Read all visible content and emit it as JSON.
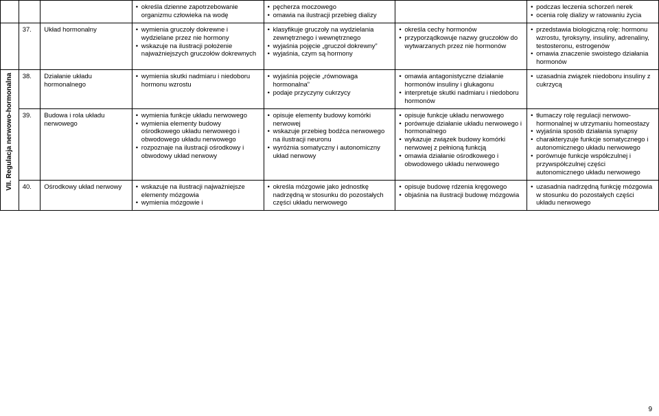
{
  "sideLabel": "VII. Regulacja nerwowo-hormonalna",
  "pageNumber": "9",
  "rows": [
    {
      "num": "",
      "topic": "",
      "c1": [
        "określa dzienne zapotrzebowanie organizmu człowieka na wodę"
      ],
      "c2": [
        "pęcherza moczowego",
        "omawia na ilustracji przebieg dializy"
      ],
      "c3": [],
      "c4": [
        "podczas leczenia schorzeń nerek",
        "ocenia rolę dializy w ratowaniu życia"
      ]
    },
    {
      "num": "37.",
      "topic": "Układ hormonalny",
      "c1": [
        "wymienia gruczoły dokrewne i wydzielane przez nie hormony",
        "wskazuje na ilustracji położenie najważniejszych gruczołów dokrewnych"
      ],
      "c2": [
        "klasyfikuje gruczoły na wydzielania zewnętrznego i wewnętrznego",
        "wyjaśnia pojęcie „gruczoł dokrewny”",
        "wyjaśnia, czym są hormony"
      ],
      "c3": [
        "określa cechy hormonów",
        "przyporządkowuje nazwy gruczołów do wytwarzanych przez nie hormonów"
      ],
      "c4": [
        "przedstawia biologiczną rolę: hormonu wzrostu, tyroksyny, insuliny, adrenaliny, testosteronu, estrogenów",
        "omawia znaczenie swoistego działania hormonów"
      ]
    },
    {
      "num": "38.",
      "topic": "Działanie układu hormonalnego",
      "c1": [
        "wymienia skutki nadmiaru i niedoboru hormonu wzrostu"
      ],
      "c2": [
        "wyjaśnia pojęcie „równowaga hormonalna”",
        "podaje przyczyny cukrzycy"
      ],
      "c3": [
        "omawia antagonistyczne działanie hormonów insuliny i glukagonu",
        "interpretuje skutki nadmiaru i niedoboru hormonów"
      ],
      "c4": [
        "uzasadnia związek niedoboru insuliny z cukrzycą"
      ]
    },
    {
      "num": "39.",
      "topic": "Budowa i rola układu nerwowego",
      "c1": [
        "wymienia funkcje układu nerwowego",
        "wymienia elementy budowy ośrodkowego układu nerwowego i obwodowego układu nerwowego",
        "rozpoznaje na ilustracji ośrodkowy i obwodowy układ nerwowy"
      ],
      "c2": [
        "opisuje elementy budowy komórki nerwowej",
        "wskazuje przebieg bodźca nerwowego na ilustracji neuronu",
        "wyróżnia somatyczny i autonomiczny układ nerwowy"
      ],
      "c3": [
        "opisuje funkcje układu nerwowego",
        "porównuje działanie układu nerwowego i hormonalnego",
        "wykazuje związek budowy komórki nerwowej z pełnioną funkcją",
        "omawia działanie ośrodkowego i obwodowego układu nerwowego"
      ],
      "c4": [
        "tłumaczy rolę regulacji nerwowo-hormonalnej w utrzymaniu homeostazy",
        "wyjaśnia sposób działania synapsy",
        "charakteryzuje funkcje somatycznego i autonomicznego układu nerwowego",
        "porównuje funkcje współczulnej i przywspółczulnej części autonomicznego układu nerwowego"
      ]
    },
    {
      "num": "40.",
      "topic": "Ośrodkowy układ nerwowy",
      "c1": [
        "wskazuje na ilustracji najważniejsze elementy mózgowia",
        "wymienia mózgowie i"
      ],
      "c2": [
        "określa mózgowie jako jednostkę nadrzędną w stosunku do pozostałych części układu nerwowego"
      ],
      "c3": [
        "opisuje budowę rdzenia kręgowego",
        "objaśnia na ilustracji budowę mózgowia"
      ],
      "c4": [
        "uzasadnia nadrzędną funkcję mózgowia w stosunku do pozostałych części układu nerwowego"
      ]
    }
  ]
}
